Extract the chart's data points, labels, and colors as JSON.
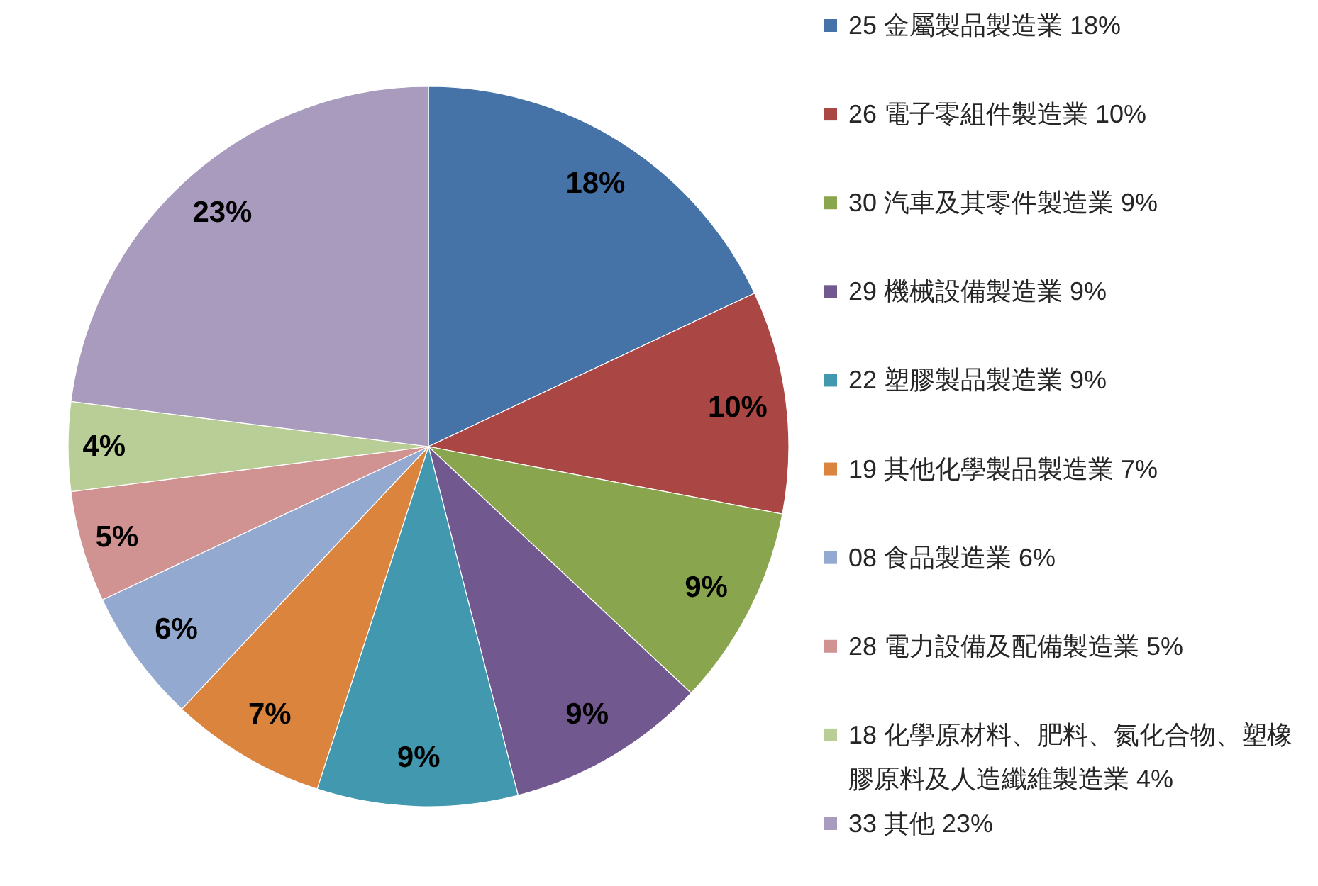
{
  "chart_data": {
    "type": "pie",
    "categories": [
      "25 金屬製品製造業 18%",
      "26 電子零組件製造業 10%",
      "30 汽車及其零件製造業 9%",
      "29 機械設備製造業 9%",
      "22 塑膠製品製造業 9%",
      "19 其他化學製品製造業 7%",
      "08 食品製造業 6%",
      "28 電力設備及配備製造業 5%",
      "18 化學原材料、肥料、氮化合物、塑橡膠原料及人造纖維製造業 4%",
      "33 其他 23%"
    ],
    "values": [
      18,
      10,
      9,
      9,
      9,
      7,
      6,
      5,
      4,
      23
    ],
    "colors": [
      "#4572a7",
      "#aa4643",
      "#89a54e",
      "#71588f",
      "#4198af",
      "#db843d",
      "#93a9cf",
      "#d19392",
      "#b9cd96",
      "#a99bbd"
    ],
    "value_labels": [
      "18%",
      "10%",
      "9%",
      "9%",
      "9%",
      "7%",
      "6%",
      "5%",
      "4%",
      "23%"
    ],
    "legend": "right"
  }
}
